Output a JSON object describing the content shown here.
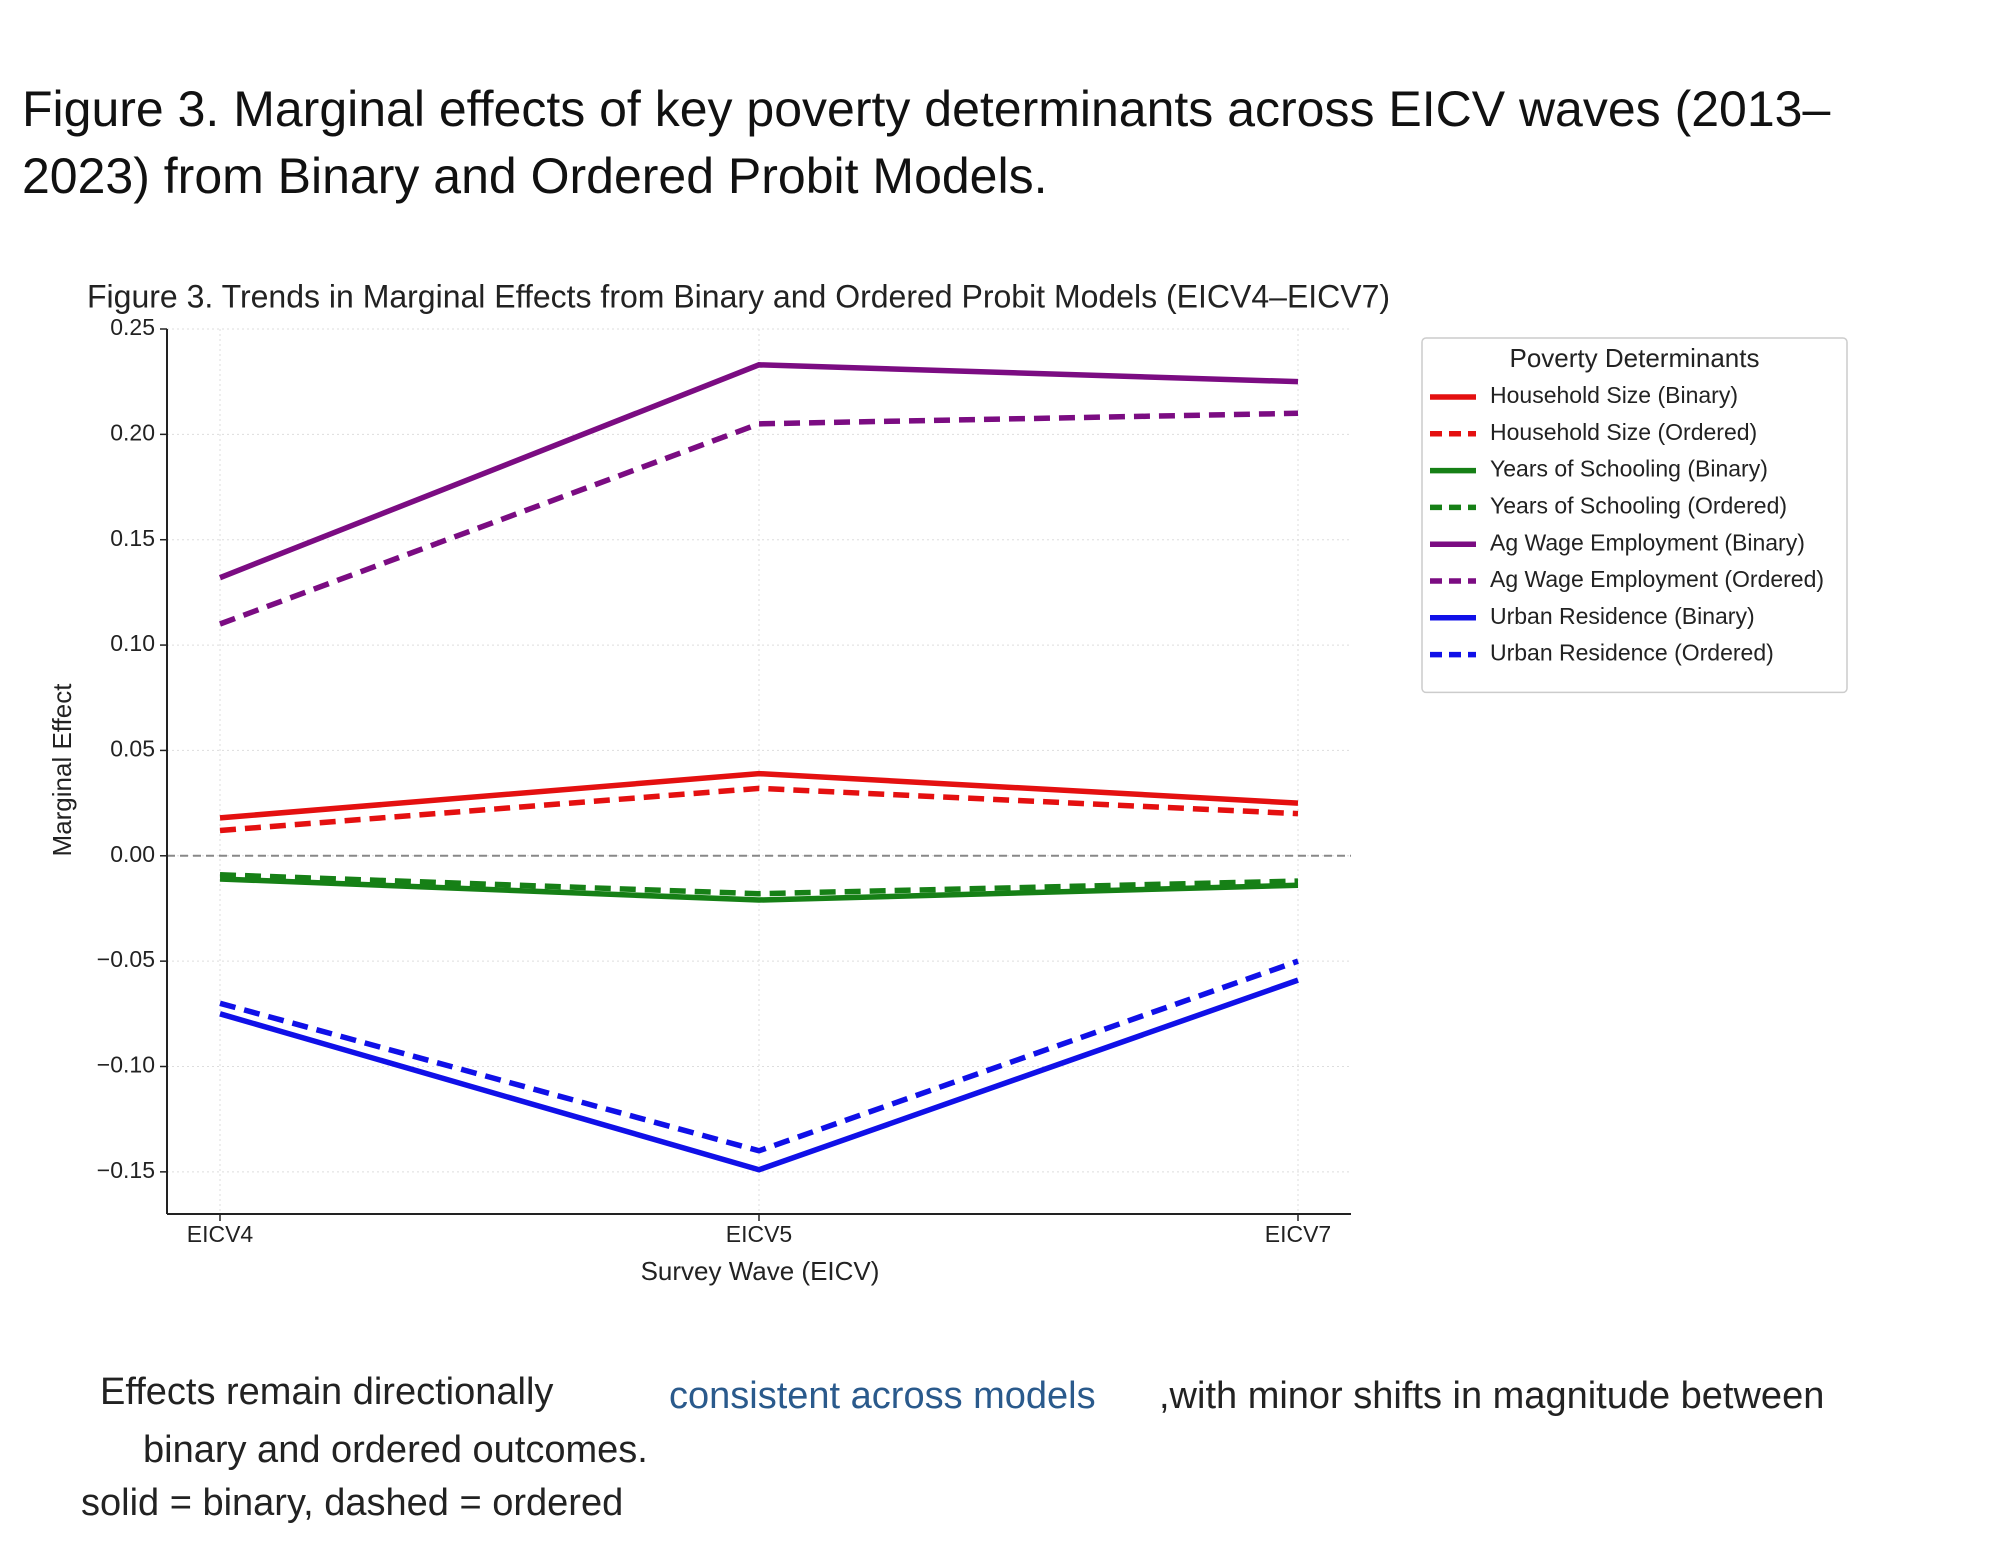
{
  "header": {
    "title": "Figure 3. Marginal effects of key poverty determinants across EICV waves (2013–2023) from Binary and Ordered Probit Models."
  },
  "chart_data": {
    "type": "line",
    "title": "Figure 3. Trends in Marginal Effects from Binary and Ordered Probit Models (EICV4–EICV7)",
    "x_label": "Survey Wave (EICV)",
    "y_label": "Marginal Effect",
    "categories": [
      "EICV4",
      "EICV5",
      "EICV7"
    ],
    "series": [
      {
        "name": "Household Size (Binary)",
        "color": "#e41010",
        "linestyle": "solid",
        "values": [
          0.018,
          0.039,
          0.025
        ]
      },
      {
        "name": "Household Size (Ordered)",
        "color": "#e41010",
        "linestyle": "dashed",
        "values": [
          0.012,
          0.032,
          0.02
        ]
      },
      {
        "name": "Years of Schooling (Binary)",
        "color": "#168016",
        "linestyle": "solid",
        "values": [
          -0.011,
          -0.021,
          -0.014
        ]
      },
      {
        "name": "Years of Schooling (Ordered)",
        "color": "#168016",
        "linestyle": "dashed",
        "values": [
          -0.009,
          -0.018,
          -0.012
        ]
      },
      {
        "name": "Ag Wage Employment (Binary)",
        "color": "#7b0c82",
        "linestyle": "solid",
        "values": [
          0.132,
          0.233,
          0.225
        ]
      },
      {
        "name": "Ag Wage Employment (Ordered)",
        "color": "#7b0c82",
        "linestyle": "dashed",
        "values": [
          0.11,
          0.205,
          0.21
        ]
      },
      {
        "name": "Urban Residence (Binary)",
        "color": "#1010e8",
        "linestyle": "solid",
        "values": [
          -0.075,
          -0.149,
          -0.059
        ]
      },
      {
        "name": "Urban Residence (Ordered)",
        "color": "#1010e8",
        "linestyle": "dashed",
        "values": [
          -0.07,
          -0.14,
          -0.05
        ]
      }
    ],
    "ylim": [
      -0.17,
      0.25
    ],
    "yticks": [
      {
        "value": 0.25,
        "label": "0.25"
      },
      {
        "value": 0.2,
        "label": "0.20"
      },
      {
        "value": 0.15,
        "label": "0.15"
      },
      {
        "value": 0.1,
        "label": "0.10"
      },
      {
        "value": 0.05,
        "label": "0.05"
      },
      {
        "value": 0,
        "label": "0.00"
      },
      {
        "value": -0.05,
        "label": "−0.05"
      },
      {
        "value": -0.1,
        "label": "−0.10"
      },
      {
        "value": -0.15,
        "label": "−0.15"
      }
    ],
    "reference_line": 0,
    "grid": true,
    "legend": {
      "title": "Poverty Determinants",
      "position": "outside right"
    }
  },
  "notes": {
    "line1_start": "Effects remain directionally",
    "line1_highlight": "consistent across models",
    "line1_end": ",with minor shifts in magnitude between",
    "line2": "binary and ordered outcomes.",
    "line3": "solid = binary, dashed = ordered"
  }
}
